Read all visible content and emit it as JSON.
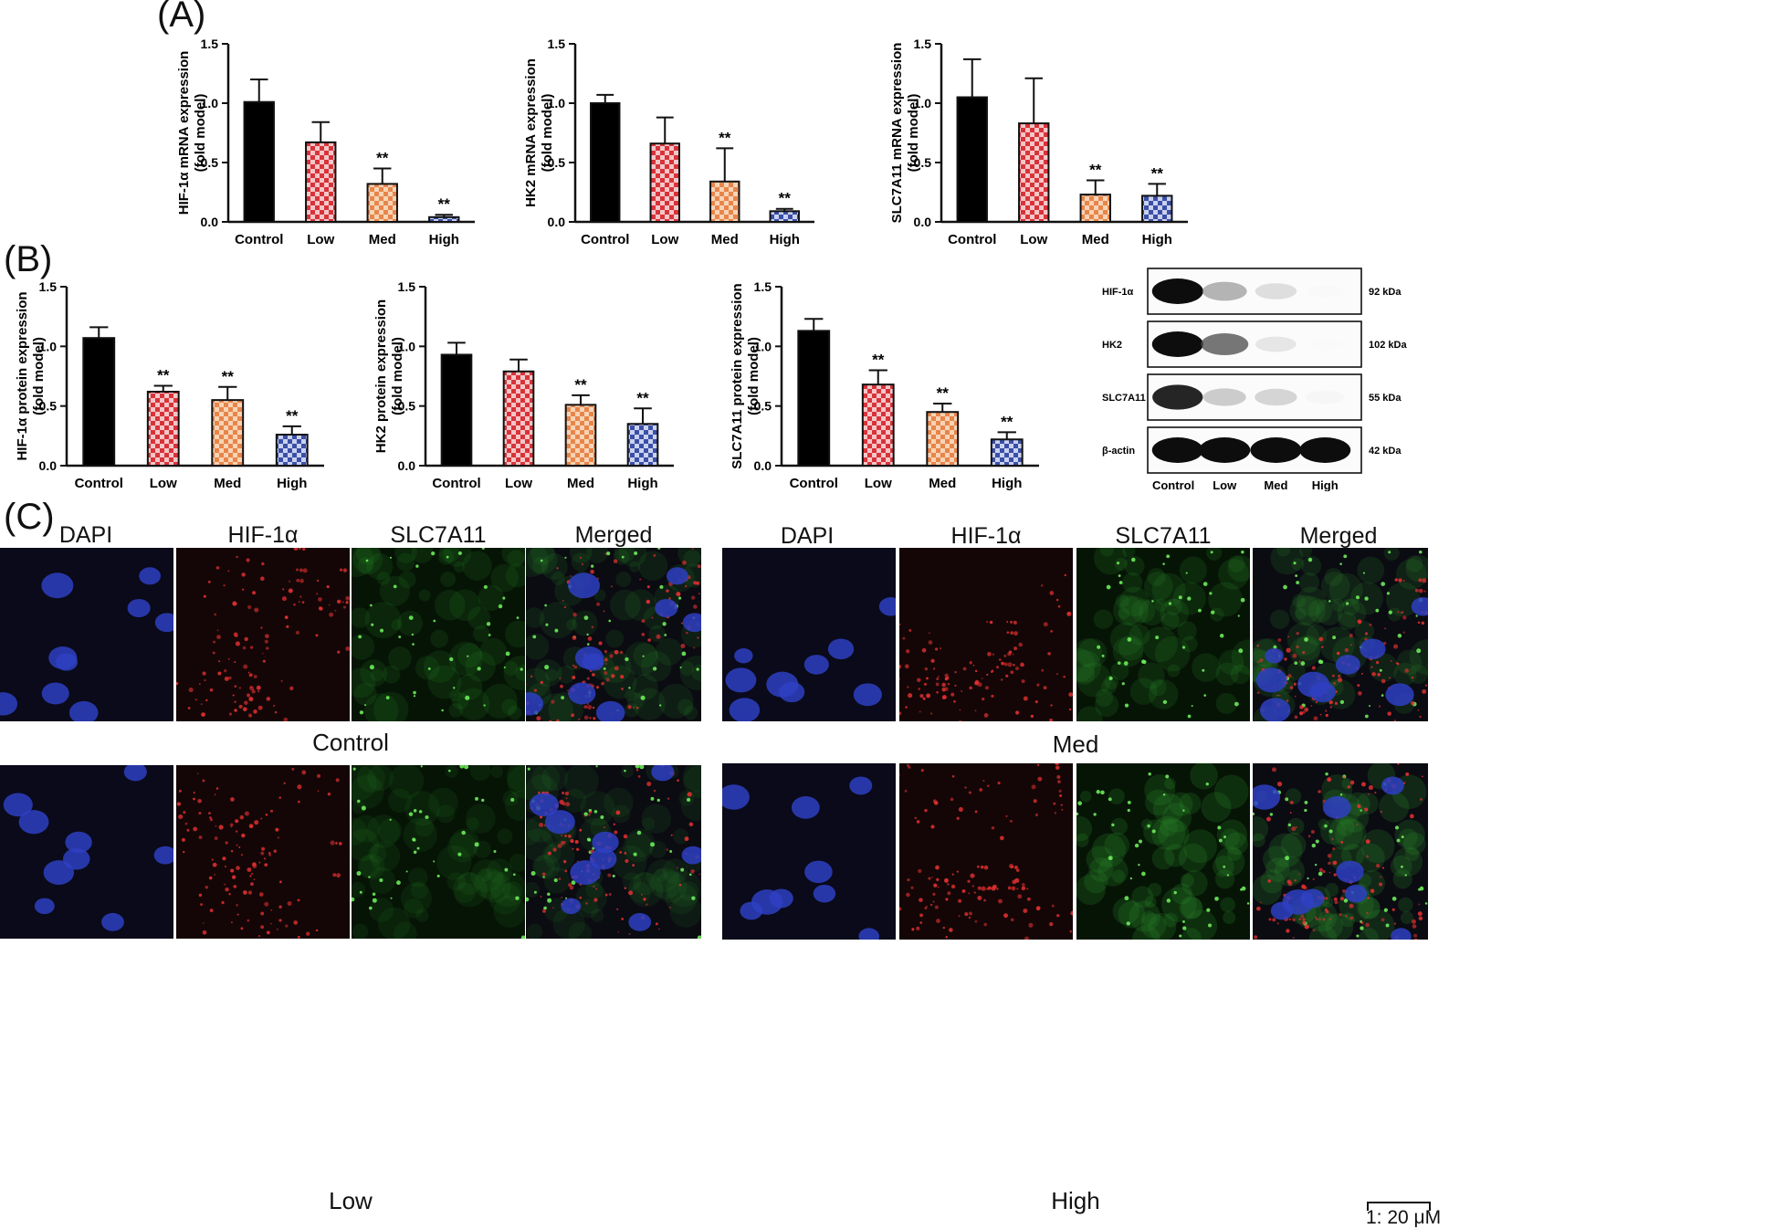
{
  "panels": {
    "a": "(A)",
    "b": "(B)",
    "c": "(C)"
  },
  "colors": {
    "control": "#000000",
    "low": "#d8333a",
    "med": "#e8854a",
    "high": "#3b4fa6",
    "low_alt": "#f4c6c8",
    "med_alt": "#f7d4b6",
    "high_alt": "#c9d1f0"
  },
  "chart_data": [
    {
      "id": "a1",
      "type": "bar",
      "categories": [
        "Control",
        "Low",
        "Med",
        "High"
      ],
      "values": [
        1.01,
        0.67,
        0.32,
        0.04
      ],
      "errors": [
        0.19,
        0.17,
        0.13,
        0.02
      ],
      "significance": [
        "",
        "",
        "**",
        "**"
      ],
      "ylabel_line1": "HIF-1α mRNA expression",
      "ylabel_line2": "(fold model)",
      "ylim": [
        0,
        1.5
      ],
      "yticks": [
        "0.0",
        "0.5",
        "1.0",
        "1.5"
      ]
    },
    {
      "id": "a2",
      "type": "bar",
      "categories": [
        "Control",
        "Low",
        "Med",
        "High"
      ],
      "values": [
        1.0,
        0.66,
        0.34,
        0.09
      ],
      "errors": [
        0.07,
        0.22,
        0.28,
        0.02
      ],
      "significance": [
        "",
        "",
        "**",
        "**"
      ],
      "ylabel_line1": "HK2 mRNA expression",
      "ylabel_line2": "(fold model)",
      "ylim": [
        0,
        1.5
      ],
      "yticks": [
        "0.0",
        "0.5",
        "1.0",
        "1.5"
      ]
    },
    {
      "id": "a3",
      "type": "bar",
      "categories": [
        "Control",
        "Low",
        "Med",
        "High"
      ],
      "values": [
        1.05,
        0.83,
        0.23,
        0.22
      ],
      "errors": [
        0.32,
        0.38,
        0.12,
        0.1
      ],
      "significance": [
        "",
        "",
        "**",
        "**"
      ],
      "ylabel_line1": "SLC7A11 mRNA expression",
      "ylabel_line2": "(fold model)",
      "ylim": [
        0,
        1.5
      ],
      "yticks": [
        "0.0",
        "0.5",
        "1.0",
        "1.5"
      ]
    },
    {
      "id": "b1",
      "type": "bar",
      "categories": [
        "Control",
        "Low",
        "Med",
        "High"
      ],
      "values": [
        1.07,
        0.62,
        0.55,
        0.26
      ],
      "errors": [
        0.09,
        0.05,
        0.11,
        0.07
      ],
      "significance": [
        "",
        "**",
        "**",
        "**"
      ],
      "ylabel_line1": "HIF-1α protein expression",
      "ylabel_line2": "(fold model)",
      "ylim": [
        0,
        1.5
      ],
      "yticks": [
        "0.0",
        "0.5",
        "1.0",
        "1.5"
      ]
    },
    {
      "id": "b2",
      "type": "bar",
      "categories": [
        "Control",
        "Low",
        "Med",
        "High"
      ],
      "values": [
        0.93,
        0.79,
        0.51,
        0.35
      ],
      "errors": [
        0.1,
        0.1,
        0.08,
        0.13
      ],
      "significance": [
        "",
        "",
        "**",
        "**"
      ],
      "ylabel_line1": "HK2 protein expression",
      "ylabel_line2": "(fold model)",
      "ylim": [
        0,
        1.5
      ],
      "yticks": [
        "0.0",
        "0.5",
        "1.0",
        "1.5"
      ]
    },
    {
      "id": "b3",
      "type": "bar",
      "categories": [
        "Control",
        "Low",
        "Med",
        "High"
      ],
      "values": [
        1.13,
        0.68,
        0.45,
        0.22
      ],
      "errors": [
        0.1,
        0.12,
        0.07,
        0.06
      ],
      "significance": [
        "",
        "**",
        "**",
        "**"
      ],
      "ylabel_line1": "SLC7A11 protein expression",
      "ylabel_line2": "(fold model)",
      "ylim": [
        0,
        1.5
      ],
      "yticks": [
        "0.0",
        "0.5",
        "1.0",
        "1.5"
      ]
    }
  ],
  "western_blot": {
    "rows": [
      {
        "protein": "HIF-1α",
        "kda": "92 kDa",
        "intensities": [
          1.0,
          0.55,
          0.35,
          0.05
        ]
      },
      {
        "protein": "HK2",
        "kda": "102 kDa",
        "intensities": [
          1.0,
          0.75,
          0.3,
          0.03
        ]
      },
      {
        "protein": "SLC7A11",
        "kda": "55 kDa",
        "intensities": [
          0.95,
          0.45,
          0.4,
          0.15
        ]
      },
      {
        "protein": "β-actin",
        "kda": "42 kDa",
        "intensities": [
          1.0,
          1.0,
          1.0,
          1.0
        ]
      }
    ],
    "lanes": [
      "Control",
      "Low",
      "Med",
      "High"
    ]
  },
  "microscopy": {
    "channels": [
      "DAPI",
      "HIF-1α",
      "SLC7A11",
      "Merged"
    ],
    "groups": {
      "control": "Control",
      "low": "Low",
      "med": "Med",
      "high": "High"
    },
    "scale_bar": "1: 20 μM"
  }
}
